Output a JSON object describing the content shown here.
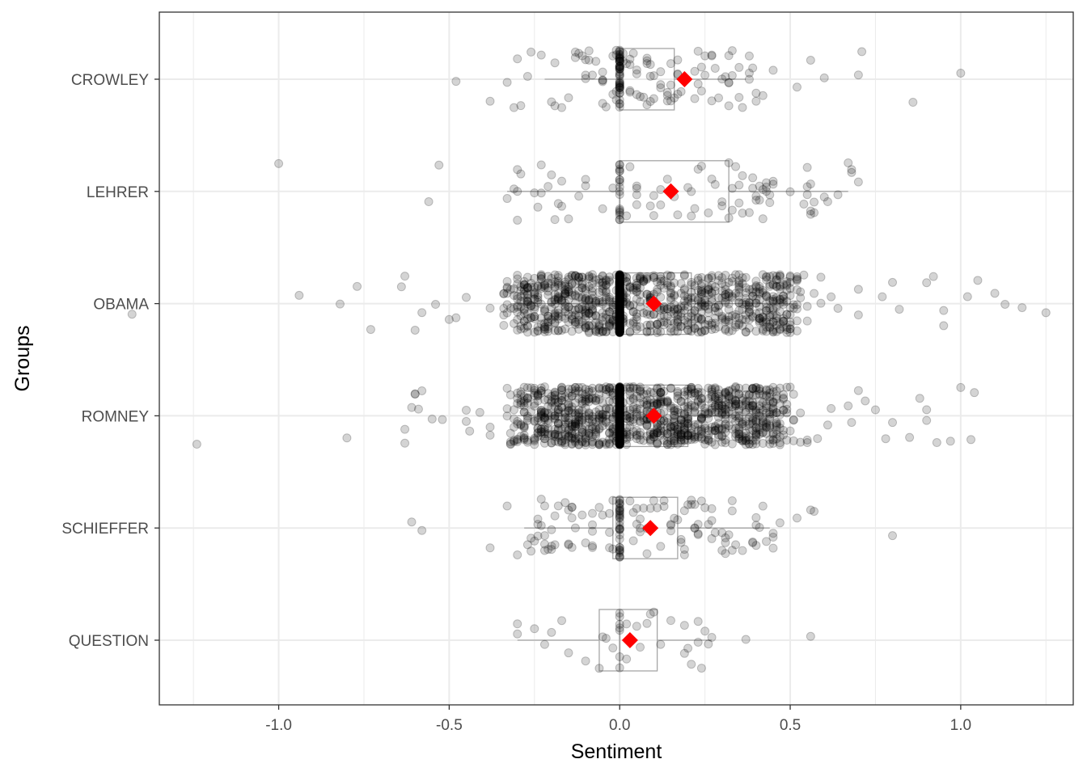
{
  "chart_data": {
    "type": "scatter",
    "subtype": "horizontal boxplot with jittered points and mean markers",
    "xlabel": "Sentiment",
    "ylabel": "Groups",
    "xlim": [
      -1.35,
      1.33
    ],
    "x_ticks": [
      -1.0,
      -0.5,
      0.0,
      0.5,
      1.0
    ],
    "x_tick_labels": [
      "-1.0",
      "-0.5",
      "0.0",
      "0.5",
      "1.0"
    ],
    "grid": true,
    "colors": {
      "points": "#000000",
      "mean_marker": "#ff0000",
      "box": "#a6a6a6",
      "grid": "#ebebeb",
      "panel_border": "#333333"
    },
    "categories": [
      "CROWLEY",
      "LEHRER",
      "OBAMA",
      "ROMNEY",
      "SCHIEFFER",
      "QUESTION"
    ],
    "groups": [
      {
        "name": "CROWLEY",
        "box": {
          "whisker_low": -0.22,
          "q1": 0.0,
          "median": 0.0,
          "q3": 0.16,
          "whisker_high": 0.37
        },
        "mean": 0.19,
        "n_points": 160,
        "points": [
          -0.48,
          -0.38,
          -0.33,
          -0.31,
          -0.3,
          -0.27,
          -0.26,
          -0.2,
          -0.19,
          -0.1,
          -0.05,
          0.02,
          0.05,
          0.07,
          0.08,
          0.1,
          0.12,
          0.15,
          0.18,
          0.22,
          0.25,
          0.27,
          0.3,
          0.33,
          0.35,
          0.36,
          0.4,
          0.42,
          0.45,
          0.52,
          0.56,
          0.6,
          0.7,
          0.71,
          0.86,
          1.0
        ]
      },
      {
        "name": "LEHRER",
        "box": {
          "whisker_low": -0.33,
          "q1": 0.0,
          "median": 0.0,
          "q3": 0.32,
          "whisker_high": 0.67
        },
        "mean": 0.15,
        "n_points": 110,
        "points": [
          -1.0,
          -0.53,
          -0.56,
          -0.33,
          -0.3,
          -0.3,
          -0.25,
          -0.2,
          -0.18,
          -0.15,
          -0.12,
          -0.1,
          0.02,
          0.05,
          0.1,
          0.12,
          0.2,
          0.22,
          0.28,
          0.3,
          0.33,
          0.36,
          0.38,
          0.45,
          0.55,
          0.56,
          0.57,
          0.67,
          0.68
        ]
      },
      {
        "name": "OBAMA",
        "box": {
          "whisker_low": -0.32,
          "q1": 0.0,
          "median": 0.0,
          "q3": 0.21,
          "whisker_high": 0.52
        },
        "mean": 0.1,
        "n_points": 1300,
        "points": [
          -0.94,
          -0.73,
          -0.64,
          -0.63,
          -0.6,
          -0.58,
          -0.54,
          -0.5,
          -0.45,
          0.55,
          0.62,
          0.7,
          0.77,
          0.8,
          0.82,
          0.9,
          0.95,
          1.02,
          1.05,
          1.1,
          1.13,
          1.18,
          1.25
        ]
      },
      {
        "name": "ROMNEY",
        "box": {
          "whisker_low": -0.3,
          "q1": 0.0,
          "median": 0.0,
          "q3": 0.2,
          "whisker_high": 0.5
        },
        "mean": 0.1,
        "n_points": 1500,
        "points": [
          -1.24,
          -0.8,
          -0.63,
          -0.61,
          -0.6,
          -0.58,
          -0.55,
          -0.52,
          0.55,
          0.62,
          0.68,
          0.72,
          0.75,
          0.8,
          0.85,
          0.9,
          0.93,
          0.97,
          1.0,
          1.04
        ]
      },
      {
        "name": "SCHIEFFER",
        "box": {
          "whisker_low": -0.28,
          "q1": -0.02,
          "median": 0.0,
          "q3": 0.17,
          "whisker_high": 0.44
        },
        "mean": 0.09,
        "n_points": 150,
        "points": [
          -0.61,
          -0.58,
          -0.38,
          -0.33,
          -0.3,
          -0.25,
          -0.24,
          -0.22,
          -0.2,
          -0.15,
          -0.1,
          -0.08,
          -0.05,
          0.05,
          0.08,
          0.1,
          0.12,
          0.15,
          0.2,
          0.22,
          0.25,
          0.27,
          0.3,
          0.33,
          0.36,
          0.4,
          0.45,
          0.52,
          0.56,
          0.57,
          0.8
        ]
      },
      {
        "name": "QUESTION",
        "box": {
          "whisker_low": -0.3,
          "q1": -0.06,
          "median": 0.0,
          "q3": 0.11,
          "whisker_high": 0.27
        },
        "mean": 0.03,
        "n_points": 40,
        "points": [
          -0.3,
          -0.3,
          -0.25,
          -0.2,
          -0.17,
          -0.15,
          -0.1,
          -0.05,
          -0.04,
          0.0,
          0.0,
          0.02,
          0.05,
          0.08,
          0.09,
          0.1,
          0.12,
          0.2,
          0.21,
          0.26,
          0.27,
          0.37,
          0.56
        ]
      }
    ]
  }
}
